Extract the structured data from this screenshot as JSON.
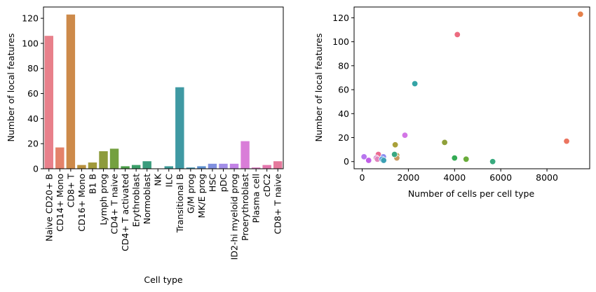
{
  "chart_data": [
    {
      "type": "bar",
      "title": "",
      "xlabel": "Cell type",
      "ylabel": "Number of local features",
      "ylim": [
        0,
        129
      ],
      "yticks": [
        0,
        20,
        40,
        60,
        80,
        100,
        120
      ],
      "categories": [
        "Naive CD20+ B",
        "CD14+ Mono",
        "CD8+ T",
        "CD16+ Mono",
        "B1 B",
        "Lymph prog",
        "CD4+ T naive",
        "CD4+ T activated",
        "Erythroblast",
        "Normoblast",
        "NK",
        "ILC",
        "Transitional B",
        "G/M prog",
        "MK/E prog",
        "HSC",
        "pDC",
        "ID2-hi myeloid prog",
        "Proerythroblast",
        "Plasma cell",
        "cDC2",
        "CD8+ T naive"
      ],
      "values": [
        106,
        17,
        123,
        3,
        5,
        14,
        16,
        2,
        3,
        6,
        0,
        2,
        65,
        1,
        2,
        4,
        4,
        4,
        22,
        1,
        3,
        6
      ],
      "colors": [
        "#e8808b",
        "#e4826a",
        "#cd8a4a",
        "#b9913d",
        "#a19a3a",
        "#8d9b3c",
        "#74a03f",
        "#4c9f49",
        "#3a9e68",
        "#3b9c7d",
        "#3c9b8b",
        "#3d9a97",
        "#3f99a3",
        "#4296b3",
        "#5d8fce",
        "#8090e0",
        "#a28ee8",
        "#c282e6",
        "#d97dd8",
        "#e17bc5",
        "#e478ae",
        "#e5799c"
      ]
    },
    {
      "type": "scatter",
      "title": "",
      "xlabel": "Number of cells per cell type",
      "ylabel": "Number of local features",
      "xlim": [
        -350,
        9850
      ],
      "ylim": [
        -6,
        129
      ],
      "xticks": [
        0,
        2000,
        4000,
        6000,
        8000
      ],
      "yticks": [
        0,
        20,
        40,
        60,
        80,
        100,
        120
      ],
      "points": [
        {
          "x": 9450,
          "y": 123,
          "color": "#e5804a"
        },
        {
          "x": 4120,
          "y": 106,
          "color": "#ec6b7f"
        },
        {
          "x": 2280,
          "y": 65,
          "color": "#35a4a6"
        },
        {
          "x": 1850,
          "y": 22,
          "color": "#d376e6"
        },
        {
          "x": 8850,
          "y": 17,
          "color": "#eb7560"
        },
        {
          "x": 3570,
          "y": 16,
          "color": "#8fa03a"
        },
        {
          "x": 1430,
          "y": 14,
          "color": "#a9a03a"
        },
        {
          "x": 700,
          "y": 6,
          "color": "#ec6b91"
        },
        {
          "x": 1500,
          "y": 5,
          "color": "#b9a046"
        },
        {
          "x": 80,
          "y": 4,
          "color": "#b776ee"
        },
        {
          "x": 920,
          "y": 4,
          "color": "#8b8df0"
        },
        {
          "x": 610,
          "y": 3,
          "color": "#d58cd0"
        },
        {
          "x": 1500,
          "y": 3,
          "color": "#c79a5f"
        },
        {
          "x": 4000,
          "y": 3,
          "color": "#34ab55"
        },
        {
          "x": 4500,
          "y": 2,
          "color": "#69ac3a"
        },
        {
          "x": 660,
          "y": 2,
          "color": "#e184bd"
        },
        {
          "x": 1400,
          "y": 6,
          "color": "#3aa882"
        },
        {
          "x": 860,
          "y": 2,
          "color": "#5a9ee0"
        },
        {
          "x": 280,
          "y": 1,
          "color": "#c15ee6"
        },
        {
          "x": 930,
          "y": 1,
          "color": "#3ba0b4"
        },
        {
          "x": 5650,
          "y": 0,
          "color": "#38aa7e"
        }
      ]
    }
  ]
}
